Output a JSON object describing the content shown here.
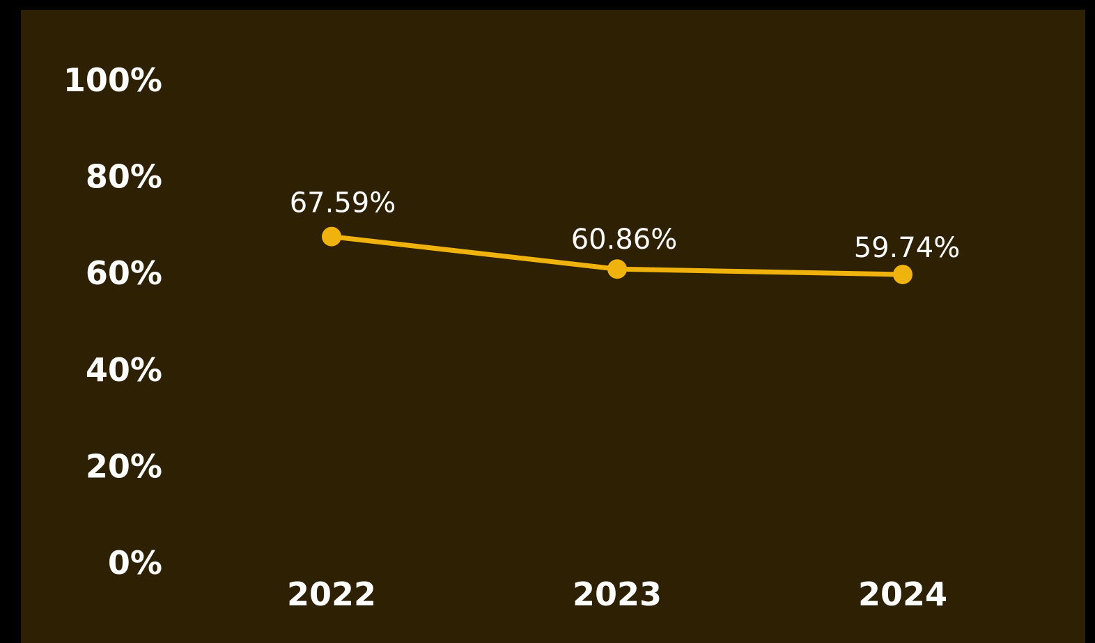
{
  "chart_data": {
    "type": "line",
    "categories": [
      "2022",
      "2023",
      "2024"
    ],
    "series": [
      {
        "values": [
          67.59,
          60.86,
          59.74
        ],
        "labels": [
          "67.59%",
          "60.86%",
          "59.74%"
        ],
        "color": "#f0b20d"
      }
    ],
    "ylim": [
      0,
      100
    ],
    "yticks": [
      0,
      20,
      40,
      60,
      80,
      100
    ],
    "ytick_labels": [
      "0%",
      "20%",
      "40%",
      "60%",
      "80%",
      "100%"
    ],
    "grid": false,
    "legend": "none",
    "background": "#2e2002",
    "text_color": "#ffffff"
  }
}
